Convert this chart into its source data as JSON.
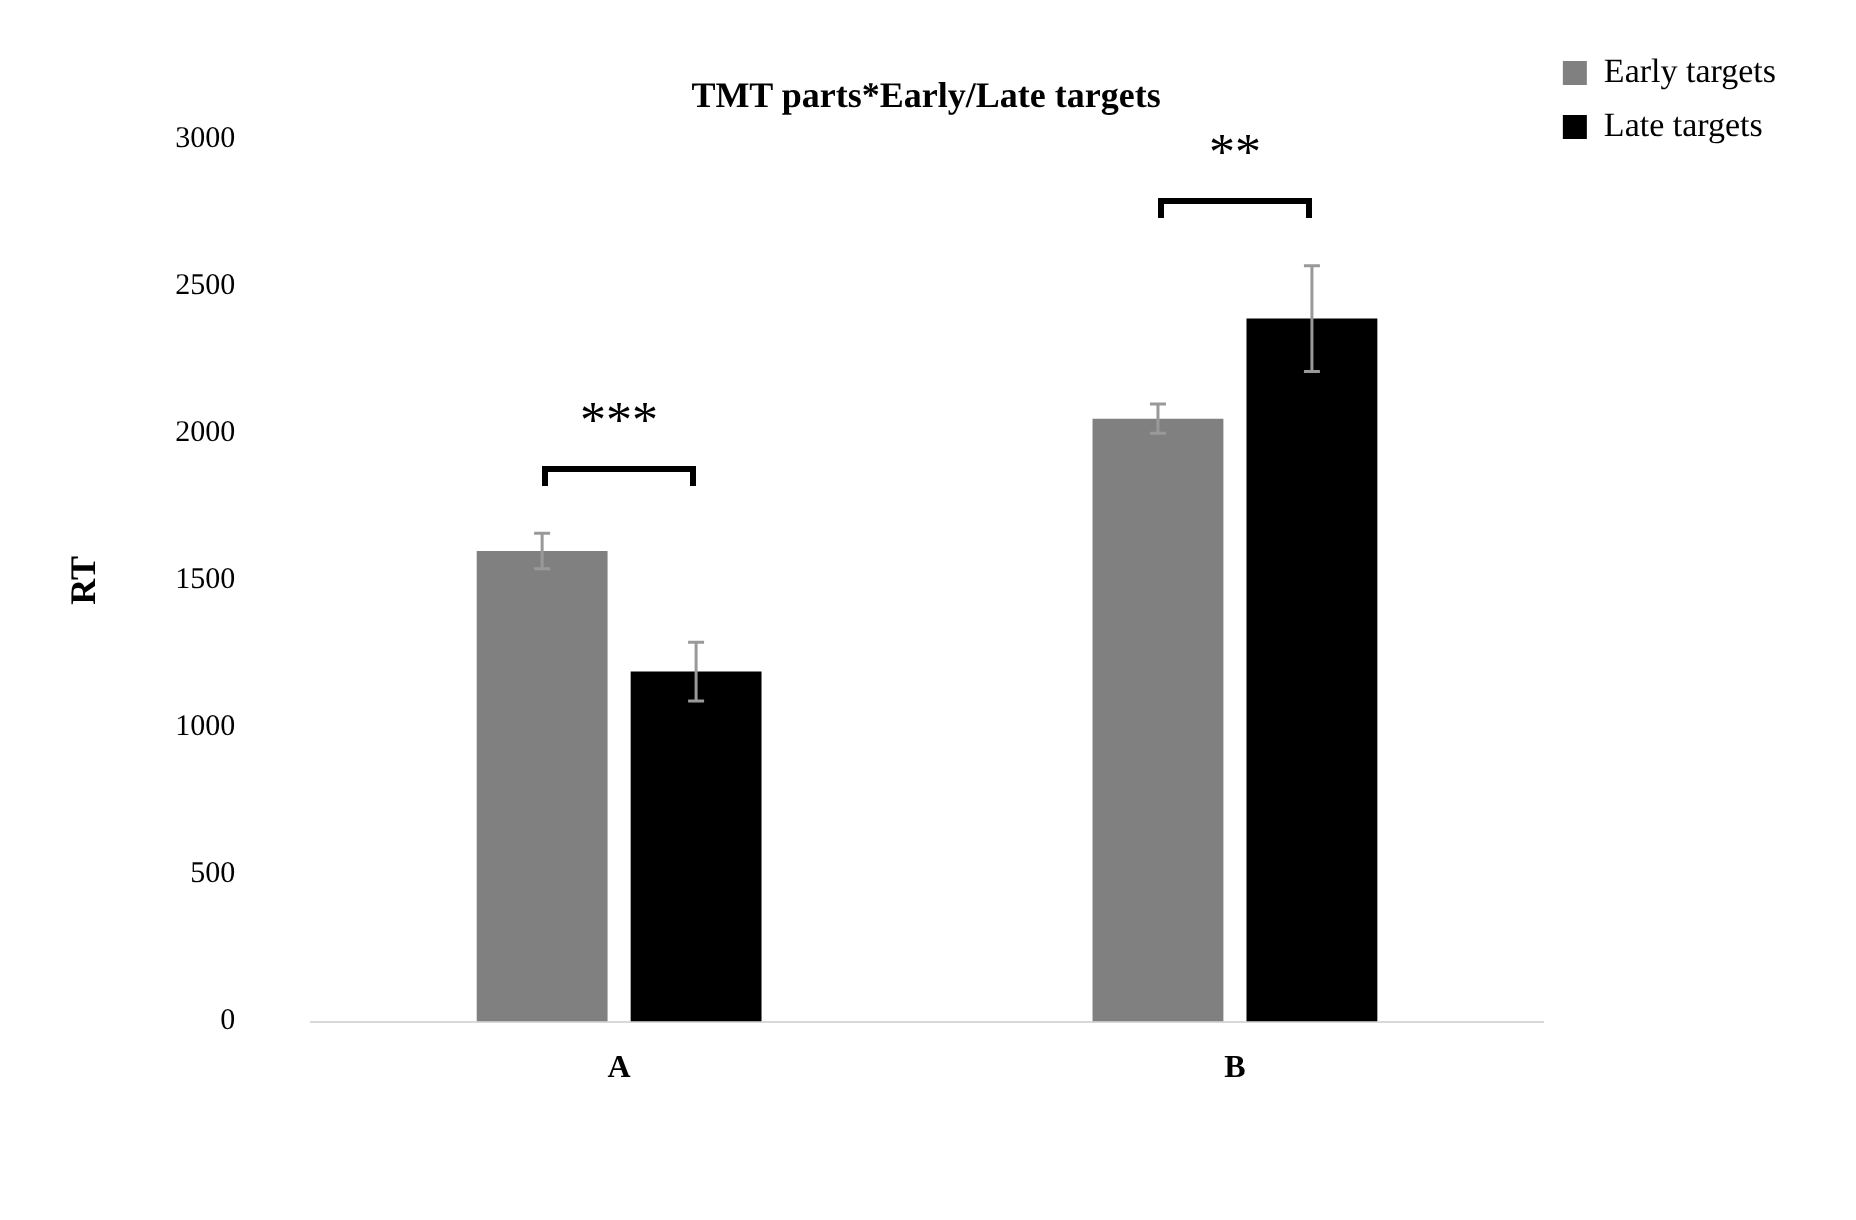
{
  "chart_data": {
    "type": "bar",
    "title": "TMT parts*Early/Late targets",
    "ylabel": "RT",
    "categories": [
      "A",
      "B"
    ],
    "series": [
      {
        "name": "Early targets",
        "color": "#808080",
        "values": [
          1600,
          2050
        ],
        "errors": [
          60,
          50
        ]
      },
      {
        "name": "Late targets",
        "color": "#000000",
        "values": [
          1190,
          2390
        ],
        "errors": [
          100,
          180
        ]
      }
    ],
    "ylim": [
      0,
      3000
    ],
    "yticks": [
      0,
      500,
      1000,
      1500,
      2000,
      2500,
      3000
    ],
    "grid": false,
    "legend": "top right",
    "annotations": [
      "***",
      "**"
    ]
  }
}
